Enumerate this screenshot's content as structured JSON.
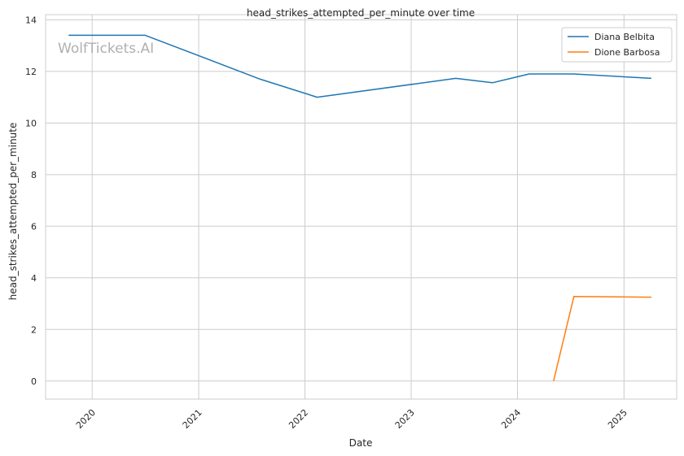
{
  "chart_data": {
    "type": "line",
    "title": "head_strikes_attempted_per_minute over time",
    "xlabel": "Date",
    "ylabel": "head_strikes_attempted_per_minute",
    "x_ticks": [
      "2020",
      "2021",
      "2022",
      "2023",
      "2024",
      "2025"
    ],
    "y_ticks": [
      "0",
      "2",
      "4",
      "6",
      "8",
      "10",
      "12",
      "14"
    ],
    "ylim": [
      -0.7,
      14.2
    ],
    "xlim": [
      "2019-07-25",
      "2025-07-01"
    ],
    "grid": true,
    "legend_position": "top-right",
    "watermark": "WolfTickets.AI",
    "series": [
      {
        "name": "Diana Belbita",
        "color": "#1f77b4",
        "points": [
          {
            "x": "2019-10-12",
            "y": 13.4
          },
          {
            "x": "2020-07-01",
            "y": 13.4
          },
          {
            "x": "2021-07-31",
            "y": 11.7
          },
          {
            "x": "2022-02-12",
            "y": 11.0
          },
          {
            "x": "2023-06-03",
            "y": 11.73
          },
          {
            "x": "2023-10-07",
            "y": 11.56
          },
          {
            "x": "2024-02-10",
            "y": 11.9
          },
          {
            "x": "2024-07-13",
            "y": 11.9
          },
          {
            "x": "2025-04-05",
            "y": 11.73
          }
        ]
      },
      {
        "name": "Dione Barbosa",
        "color": "#ff7f0e",
        "points": [
          {
            "x": "2024-05-04",
            "y": 0.0
          },
          {
            "x": "2024-07-13",
            "y": 3.28
          },
          {
            "x": "2025-04-05",
            "y": 3.25
          }
        ]
      }
    ]
  }
}
